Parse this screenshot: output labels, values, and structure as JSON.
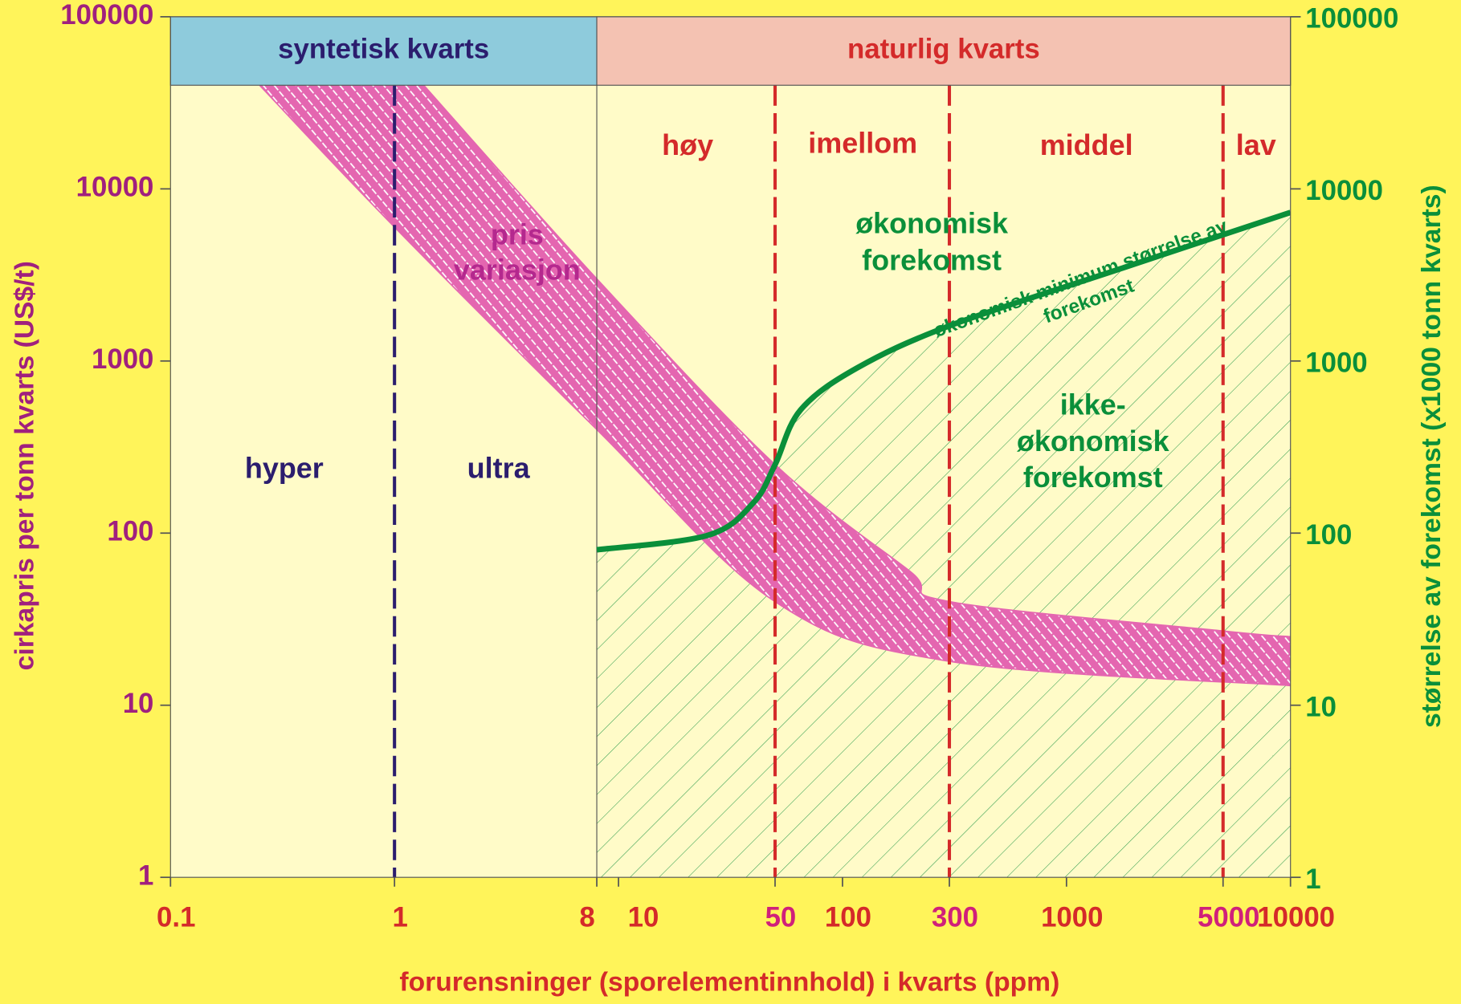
{
  "chart_data": {
    "type": "line",
    "xlog": true,
    "ylog": true,
    "xlabel": "forurensninger (sporelementinnhold) i kvarts (ppm)",
    "ylabel": "cirkapris per tonn kvarts (US$/t)",
    "y2label": "størrelse av forekomst (x1000 tonn kvarts)",
    "xlim": [
      0.1,
      10000
    ],
    "xticks": [
      0.1,
      1,
      8,
      10,
      50,
      100,
      300,
      1000,
      5000,
      10000
    ],
    "xtick_colors": [
      "#d42a2a",
      "#d42a2a",
      "#d42a2a",
      "#d42a2a",
      "#d0207a",
      "#d42a2a",
      "#d0207a",
      "#d42a2a",
      "#d0207a",
      "#d42a2a"
    ],
    "ylim": [
      1,
      100000
    ],
    "yticks": [
      1,
      10,
      100,
      1000,
      10000,
      100000
    ],
    "y2lim": [
      1,
      100000
    ],
    "y2ticks": [
      1,
      10,
      100,
      1000,
      10000,
      100000
    ],
    "header_bottom": 40000,
    "header_regions": [
      {
        "text": "syntetisk kvarts",
        "from": 0.1,
        "to": 8,
        "color": "#8ecbdc",
        "text_color": "#2b1d6e"
      },
      {
        "text": "naturlig kvarts",
        "from": 8,
        "to": 10000,
        "color": "#f4c2b2",
        "text_color": "#d42a2a"
      }
    ],
    "dividers": [
      {
        "x": 1,
        "color": "#2b1d6e",
        "dashed": true
      },
      {
        "x": 8,
        "color": "#555555",
        "dashed": false
      },
      {
        "x": 50,
        "color": "#d42a2a",
        "dashed": true
      },
      {
        "x": 300,
        "color": "#d42a2a",
        "dashed": true
      },
      {
        "x": 5000,
        "color": "#d42a2a",
        "dashed": true
      }
    ],
    "band": {
      "color": "#e466b0",
      "upper": {
        "x": [
          1.35,
          8,
          50,
          200,
          300,
          5000,
          10000
        ],
        "values": [
          40000,
          3000,
          250,
          60,
          40,
          27,
          25
        ]
      },
      "lower": {
        "x": [
          0.25,
          1,
          8,
          50,
          300,
          10000
        ],
        "values": [
          40000,
          6000,
          400,
          40,
          18,
          13
        ]
      }
    },
    "series": [
      {
        "color": "#0a8f3a",
        "axis": "y2",
        "hatch_below": true,
        "x": [
          8,
          25,
          40,
          50,
          65,
          116,
          300,
          1700,
          10000
        ],
        "values": [
          80,
          97,
          150,
          250,
          520,
          910,
          1600,
          3400,
          7300
        ]
      }
    ],
    "annotations": [
      {
        "lines": [
          "hyper"
        ]
      },
      {
        "lines": [
          "ultra"
        ]
      },
      {
        "lines": [
          "høy"
        ]
      },
      {
        "lines": [
          "imellom"
        ]
      },
      {
        "lines": [
          "middel"
        ]
      },
      {
        "lines": [
          "lav"
        ]
      },
      {
        "lines": [
          "pris",
          "variasjon"
        ]
      },
      {
        "lines": [
          "økonomisk",
          "forekomst"
        ]
      },
      {
        "lines": [
          "ikke-",
          "økonomisk",
          "forekomst"
        ]
      },
      {
        "lines": [
          "økonomisk minimum størrelse av",
          "forekomst"
        ]
      }
    ]
  }
}
